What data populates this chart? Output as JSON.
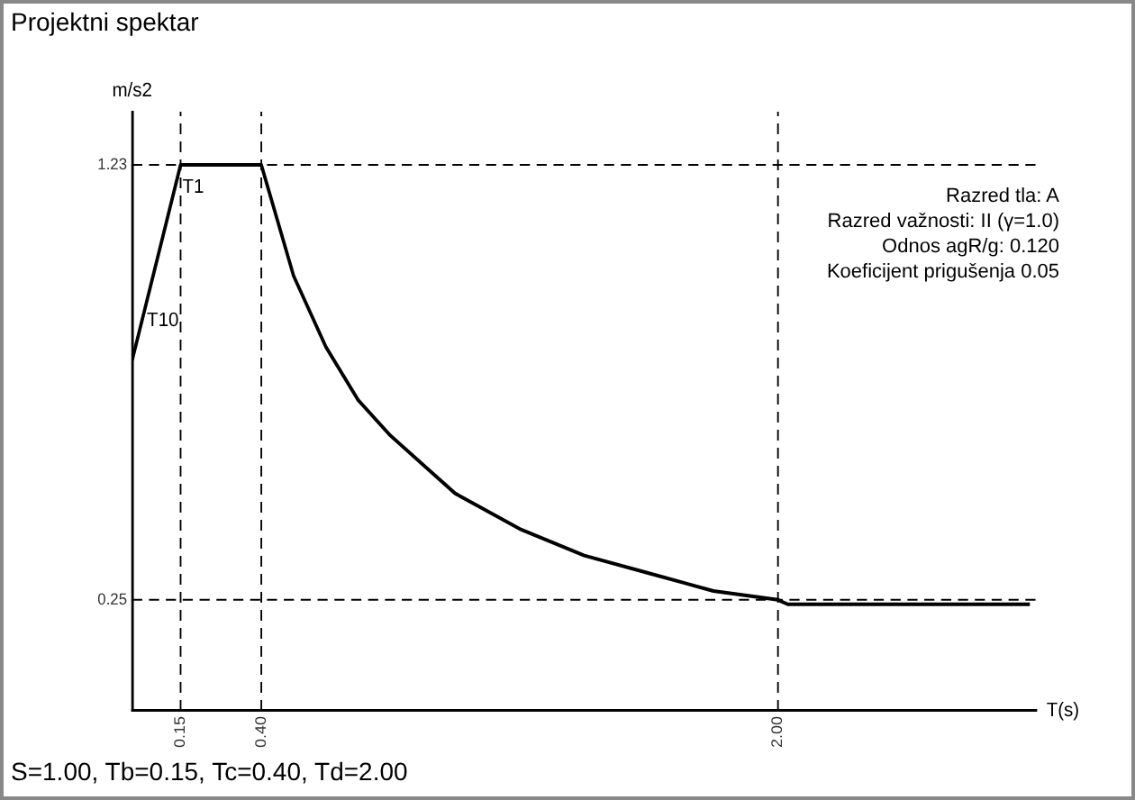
{
  "chart_data": {
    "type": "line",
    "title": "Projektni spektar",
    "xlabel": "T(s)",
    "ylabel": "m/s2",
    "x": [
      0,
      0.15,
      0.4,
      0.5,
      0.6,
      0.7,
      0.8,
      1.0,
      1.2,
      1.4,
      1.6,
      1.8,
      2.0,
      2.03,
      2.78
    ],
    "values": [
      0.79,
      1.23,
      1.23,
      0.98,
      0.82,
      0.7,
      0.62,
      0.49,
      0.41,
      0.35,
      0.31,
      0.27,
      0.25,
      0.24,
      0.24
    ],
    "color": "#000000",
    "xlim": [
      0,
      2.8
    ],
    "ylim": [
      0,
      1.35
    ],
    "xticks": [
      0.15,
      {
        "value": 0.4,
        "label": "0.40"
      },
      {
        "value": 2,
        "label": "2.00"
      }
    ],
    "yticks": [
      0.25,
      1.23
    ],
    "ref_lines": [
      {
        "axis": "x",
        "value": 0.15,
        "line_style": "dashed"
      },
      {
        "axis": "x",
        "value": 0.4,
        "line_style": "dashed"
      },
      {
        "axis": "x",
        "value": 2,
        "line_style": "dashed"
      },
      {
        "axis": "y",
        "value": 1.23,
        "line_style": "dashed"
      },
      {
        "axis": "y",
        "value": 0.25,
        "line_style": "dashed"
      }
    ],
    "annotations": [
      {
        "text": "T1",
        "x": 0.14,
        "y": 1.18
      },
      {
        "text": "T10",
        "x": 0.03,
        "y": 0.88
      },
      "Razred tla: A",
      "Razred važnosti: II (γ=1.0)",
      "Odnos agR/g: 0.120",
      "Koeficijent prigušenja 0.05",
      "S=1.00, Tb=0.15, Tc=0.40, Td=2.00"
    ],
    "grid": false,
    "legend": false,
    "marker": "none",
    "line_style": "solid"
  }
}
